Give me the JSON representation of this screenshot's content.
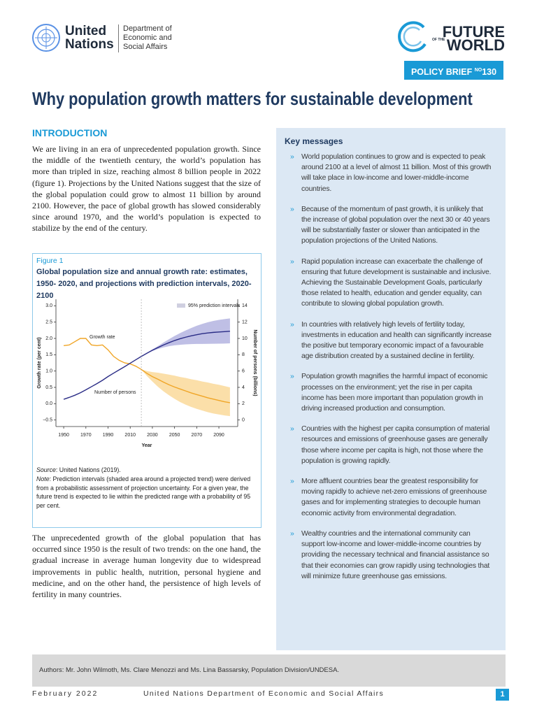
{
  "header": {
    "org_name": [
      "United",
      "Nations"
    ],
    "department": [
      "Department of",
      "Economic and",
      "Social Affairs"
    ],
    "series_logo": [
      "FUTURE",
      "OF THE",
      "WORLD"
    ],
    "policy_brief": "POLICY BRIEF",
    "no": "NO",
    "number": "130"
  },
  "title": "Why population growth matters for sustainable development",
  "introduction": {
    "heading": "INTRODUCTION",
    "paragraphs": [
      "We are living in an era of unprecedented population growth. Since the middle of the twentieth century, the world’s population has more than tripled in size, reaching almost 8 billion people in 2022 (figure 1). Projections by the United Nations suggest that the size of the global population could grow to almost 11 billion by around 2100. However, the pace of global growth has slowed considerably since around 1970, and the world’s population is expected to stabilize by the end of the century.",
      "The unprecedented growth of the global population that has occurred since 1950 is the result of two trends: on the one hand, the gradual increase in average human longevity due to widespread improvements in public health, nutrition, personal hygiene and medicine, and on the other hand, the persistence of high levels of fertility in many countries."
    ]
  },
  "figure": {
    "label": "Figure 1",
    "caption": "Global population size and annual growth rate: estimates, 1950- 2020, and projections with prediction intervals, 2020-2100",
    "source_label": "Source",
    "source": ": United Nations (2019).",
    "note_label": "Note",
    "note": ": Prediction intervals (shaded area around a projected trend) were derived from a probabilistic assessment of projection uncertainty. For a given year, the future trend is expected to lie within the predicted range with a probability of 95  per cent."
  },
  "chart_data": {
    "type": "line",
    "x_label": "Year",
    "y_label": "Growth rate (per cent)",
    "y2_label": "Number of persons (billions)",
    "interval_legend": "95% prediction intervals",
    "x": [
      1950,
      1955,
      1960,
      1965,
      1970,
      1975,
      1980,
      1985,
      1990,
      1995,
      2000,
      2005,
      2010,
      2015,
      2020,
      2025,
      2030,
      2035,
      2040,
      2045,
      2050,
      2055,
      2060,
      2065,
      2070,
      2075,
      2080,
      2085,
      2090,
      2095,
      2100
    ],
    "xlim": [
      1943,
      2107
    ],
    "xticks": [
      1950,
      1970,
      1990,
      2010,
      2030,
      2050,
      2070,
      2090
    ],
    "ylim": [
      -0.7,
      3.2
    ],
    "yticks": [
      {
        "value": -0.5,
        "label": "−0.5"
      },
      {
        "value": 0,
        "label": "0.0"
      },
      {
        "value": 0.5,
        "label": "0.5"
      },
      {
        "value": 1,
        "label": "1.0"
      },
      {
        "value": 1.5,
        "label": "1.5"
      },
      {
        "value": 2,
        "label": "2.0"
      },
      {
        "value": 2.5,
        "label": "2.5"
      },
      {
        "value": 3,
        "label": "3.0"
      }
    ],
    "y2lim": [
      -0.8,
      14.8
    ],
    "y2ticks": [
      0,
      2,
      4,
      6,
      8,
      10,
      12,
      14
    ],
    "series": [
      {
        "name": "Growth rate",
        "color": "#f0a526",
        "band_color": "#f9d48c",
        "values": [
          1.78,
          1.8,
          1.9,
          2.0,
          2.0,
          1.8,
          1.78,
          1.8,
          1.65,
          1.45,
          1.33,
          1.25,
          1.22,
          1.15,
          1.05,
          0.93,
          0.83,
          0.75,
          0.66,
          0.58,
          0.51,
          0.45,
          0.39,
          0.33,
          0.28,
          0.23,
          0.18,
          0.14,
          0.1,
          0.06,
          0.03
        ],
        "lower": [
          null,
          null,
          null,
          null,
          null,
          null,
          null,
          null,
          null,
          null,
          null,
          null,
          null,
          null,
          1.05,
          0.85,
          0.68,
          0.52,
          0.38,
          0.26,
          0.15,
          0.05,
          -0.03,
          -0.1,
          -0.16,
          -0.21,
          -0.26,
          -0.3,
          -0.33,
          -0.36,
          -0.38
        ],
        "upper": [
          null,
          null,
          null,
          null,
          null,
          null,
          null,
          null,
          null,
          null,
          null,
          null,
          null,
          null,
          1.05,
          1.0,
          0.97,
          0.95,
          0.92,
          0.89,
          0.86,
          0.82,
          0.79,
          0.75,
          0.72,
          0.68,
          0.65,
          0.61,
          0.58,
          0.54,
          0.5
        ]
      },
      {
        "name": "Number of persons",
        "color": "#2a2c86",
        "band_color": "#a9a9dc",
        "axis": "y2",
        "values": [
          2.54,
          2.77,
          3.03,
          3.34,
          3.7,
          4.08,
          4.46,
          4.87,
          5.33,
          5.74,
          6.14,
          6.54,
          6.96,
          7.38,
          7.79,
          8.18,
          8.55,
          8.88,
          9.2,
          9.48,
          9.74,
          9.96,
          10.15,
          10.32,
          10.46,
          10.58,
          10.67,
          10.74,
          10.79,
          10.83,
          10.88
        ],
        "lower": [
          null,
          null,
          null,
          null,
          null,
          null,
          null,
          null,
          null,
          null,
          null,
          null,
          null,
          null,
          7.79,
          8.15,
          8.45,
          8.7,
          8.9,
          9.05,
          9.15,
          9.22,
          9.27,
          9.3,
          9.32,
          9.33,
          9.34,
          9.35,
          9.36,
          9.37,
          9.4
        ],
        "upper": [
          null,
          null,
          null,
          null,
          null,
          null,
          null,
          null,
          null,
          null,
          null,
          null,
          null,
          null,
          7.79,
          8.22,
          8.65,
          9.06,
          9.5,
          9.9,
          10.3,
          10.65,
          10.98,
          11.28,
          11.55,
          11.78,
          11.98,
          12.14,
          12.27,
          12.37,
          12.45
        ]
      }
    ]
  },
  "key_messages": {
    "heading": "Key messages",
    "items": [
      "World population continues to grow and is expected to peak around 2100 at a level of almost 11 billion. Most of this growth will take place in low-income and lower-middle-income countries.",
      "Because of the momentum of past growth, it is unlikely that the increase of global population over the next 30 or 40 years will be substantially faster or slower than anticipated in the population projections of the United Nations.",
      "Rapid population increase can exacerbate the challenge of ensuring that future development is sustainable and inclusive. Achieving the Sustainable Development Goals, particularly those related to health, education and gender equality, can contribute to slowing global population growth.",
      "In countries with relatively high levels of fertility today, investments in education and health can significantly increase the positive but temporary economic impact of a favourable age distribution created by a sustained decline in fertility.",
      "Population growth magnifies the harmful impact of economic processes on the environment; yet the rise in per capita income has been more important than population growth in driving increased production and consumption.",
      "Countries with the highest per capita consumption of material resources and emissions of greenhouse gases are generally those where income per capita is high, not those where the population is growing rapidly.",
      "More affluent countries bear the greatest responsibility for moving rapidly to achieve net-zero emissions of greenhouse gases and for implementing strategies to decouple human economic activity from environmental degradation.",
      "Wealthy countries and the international community can support low-income and lower-middle-income countries by providing the necessary technical and financial assistance so that their economies can grow rapidly using technologies that will minimize future greenhouse gas emissions."
    ]
  },
  "authors": "Authors: Mr. John Wilmoth, Ms. Clare Menozzi and Ms. Lina Bassarsky, Population Division/UNDESA.",
  "footer": {
    "date": "February 2022",
    "org": "United Nations Department of Economic and Social Affairs",
    "page": "1"
  }
}
